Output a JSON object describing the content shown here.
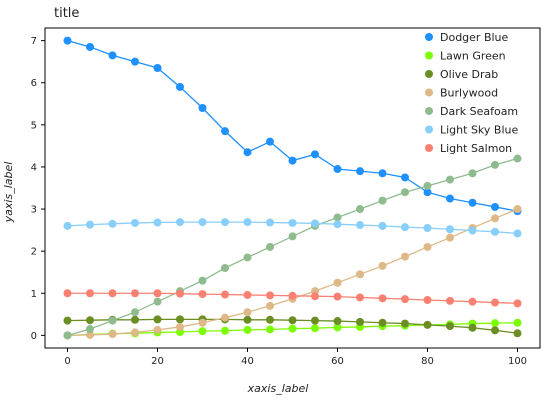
{
  "chart_data": {
    "type": "scatter",
    "title": "title",
    "xlabel": "xaxis_label",
    "ylabel": "yaxis_label",
    "xlim": [
      -5,
      105
    ],
    "ylim": [
      -0.3,
      7.3
    ],
    "xticks": [
      0,
      20,
      40,
      60,
      80,
      100
    ],
    "yticks": [
      0,
      1,
      2,
      3,
      4,
      5,
      6,
      7
    ],
    "grid": false,
    "legend_position": "right",
    "series": [
      {
        "name": "Dodger Blue",
        "color": "#1e90ff",
        "x": [
          0,
          5,
          10,
          15,
          20,
          25,
          30,
          35,
          40,
          45,
          50,
          55,
          60,
          65,
          70,
          75,
          80,
          85,
          90,
          95,
          100
        ],
        "y": [
          7.0,
          6.85,
          6.65,
          6.5,
          6.35,
          5.9,
          5.4,
          4.85,
          4.35,
          4.6,
          4.15,
          4.3,
          3.95,
          3.9,
          3.85,
          3.75,
          3.4,
          3.25,
          3.15,
          3.05,
          2.95
        ]
      },
      {
        "name": "Lawn Green",
        "color": "#7cfc00",
        "x": [
          0,
          5,
          10,
          15,
          20,
          25,
          30,
          35,
          40,
          45,
          50,
          55,
          60,
          65,
          70,
          75,
          80,
          85,
          90,
          95,
          100
        ],
        "y": [
          0.0,
          0.02,
          0.04,
          0.05,
          0.07,
          0.08,
          0.1,
          0.11,
          0.13,
          0.14,
          0.16,
          0.17,
          0.19,
          0.2,
          0.22,
          0.23,
          0.25,
          0.26,
          0.28,
          0.29,
          0.3
        ]
      },
      {
        "name": "Olive Drab",
        "color": "#6b8e23",
        "x": [
          0,
          5,
          10,
          15,
          20,
          25,
          30,
          35,
          40,
          45,
          50,
          55,
          60,
          65,
          70,
          75,
          80,
          85,
          90,
          95,
          100
        ],
        "y": [
          0.35,
          0.36,
          0.37,
          0.37,
          0.38,
          0.38,
          0.38,
          0.38,
          0.37,
          0.37,
          0.36,
          0.35,
          0.34,
          0.32,
          0.3,
          0.28,
          0.25,
          0.22,
          0.18,
          0.12,
          0.05
        ]
      },
      {
        "name": "Burlywood",
        "color": "#deb887",
        "x": [
          0,
          5,
          10,
          15,
          20,
          25,
          30,
          35,
          40,
          45,
          50,
          55,
          60,
          65,
          70,
          75,
          80,
          85,
          90,
          95,
          100
        ],
        "y": [
          0.0,
          0.01,
          0.03,
          0.07,
          0.13,
          0.2,
          0.3,
          0.42,
          0.55,
          0.7,
          0.87,
          1.05,
          1.25,
          1.45,
          1.65,
          1.87,
          2.1,
          2.32,
          2.55,
          2.78,
          3.0
        ]
      },
      {
        "name": "Dark Seafoam",
        "color": "#8fbc8f",
        "x": [
          0,
          5,
          10,
          15,
          20,
          25,
          30,
          35,
          40,
          45,
          50,
          55,
          60,
          65,
          70,
          75,
          80,
          85,
          90,
          95,
          100
        ],
        "y": [
          0.0,
          0.15,
          0.35,
          0.55,
          0.8,
          1.05,
          1.3,
          1.6,
          1.85,
          2.1,
          2.35,
          2.6,
          2.8,
          3.0,
          3.2,
          3.4,
          3.55,
          3.7,
          3.85,
          4.05,
          4.2
        ]
      },
      {
        "name": "Light Sky Blue",
        "color": "#87cefa",
        "x": [
          0,
          5,
          10,
          15,
          20,
          25,
          30,
          35,
          40,
          45,
          50,
          55,
          60,
          65,
          70,
          75,
          80,
          85,
          90,
          95,
          100
        ],
        "y": [
          2.6,
          2.63,
          2.65,
          2.67,
          2.68,
          2.69,
          2.69,
          2.69,
          2.69,
          2.68,
          2.67,
          2.66,
          2.64,
          2.62,
          2.6,
          2.57,
          2.55,
          2.52,
          2.49,
          2.46,
          2.42
        ]
      },
      {
        "name": "Light Salmon",
        "color": "#fa8072",
        "x": [
          0,
          5,
          10,
          15,
          20,
          25,
          30,
          35,
          40,
          45,
          50,
          55,
          60,
          65,
          70,
          75,
          80,
          85,
          90,
          95,
          100
        ],
        "y": [
          1.0,
          1.0,
          1.0,
          1.0,
          1.0,
          0.99,
          0.98,
          0.97,
          0.96,
          0.95,
          0.94,
          0.93,
          0.92,
          0.9,
          0.88,
          0.86,
          0.84,
          0.82,
          0.8,
          0.78,
          0.76
        ]
      }
    ]
  }
}
